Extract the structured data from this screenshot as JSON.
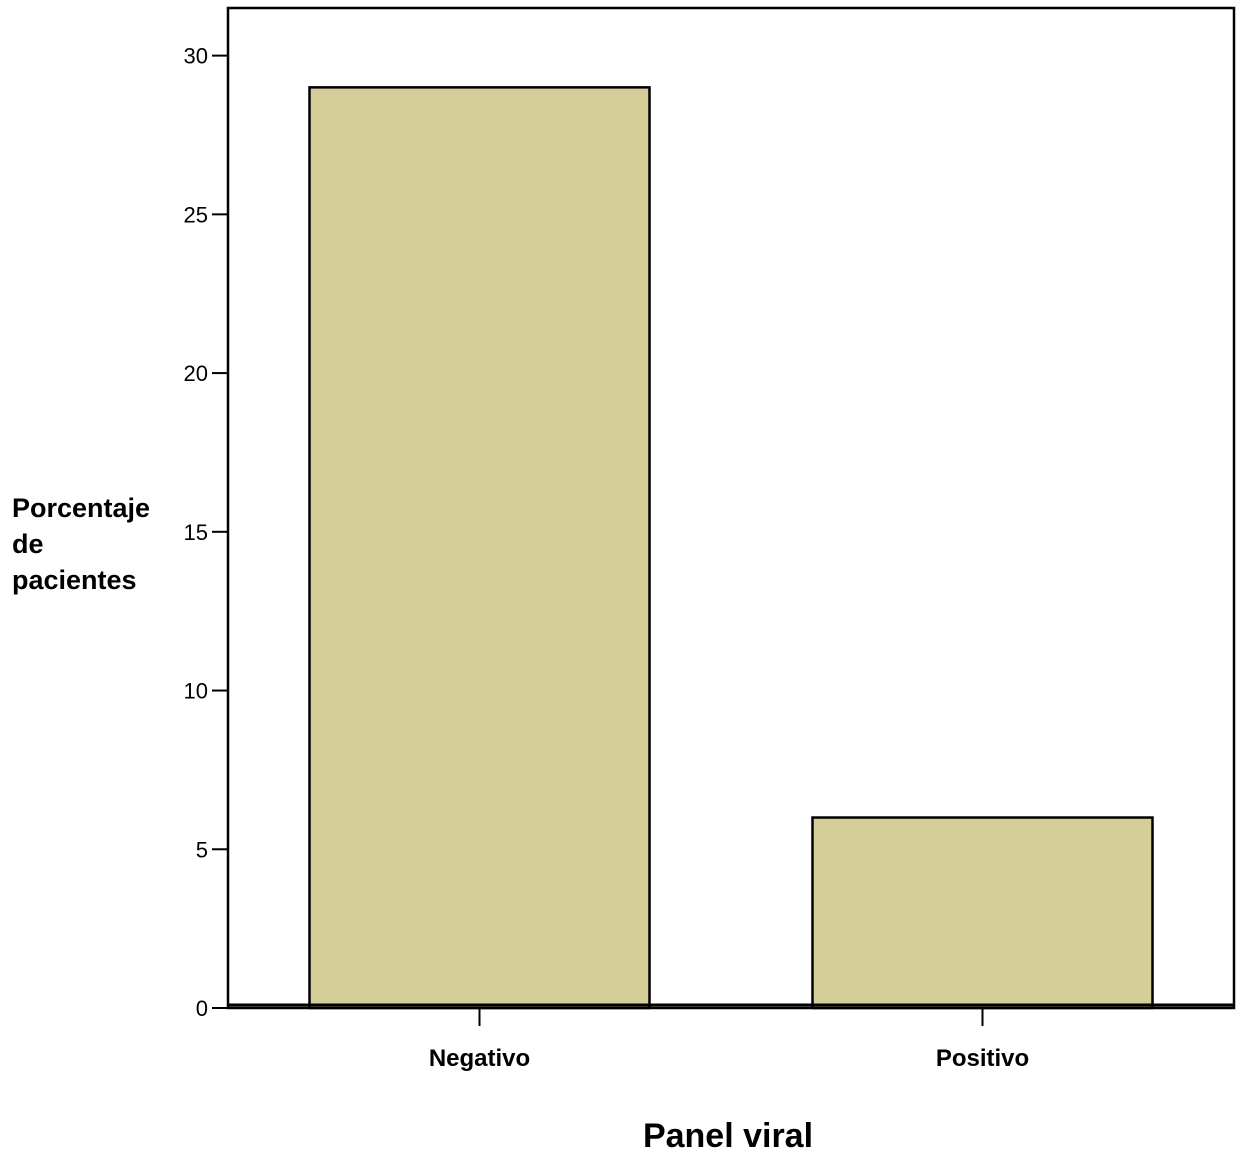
{
  "chart_data": {
    "type": "bar",
    "categories": [
      "Negativo",
      "Positivo"
    ],
    "values": [
      29,
      6
    ],
    "title": "",
    "xlabel": "Panel viral",
    "ylabel_lines": [
      "Porcentaje",
      "de",
      "pacientes"
    ],
    "ylim": [
      0,
      31.5
    ],
    "yticks": [
      0,
      5,
      10,
      15,
      20,
      25,
      30
    ],
    "bar_color": "#d4cf99",
    "grid": false,
    "legend": "none"
  }
}
